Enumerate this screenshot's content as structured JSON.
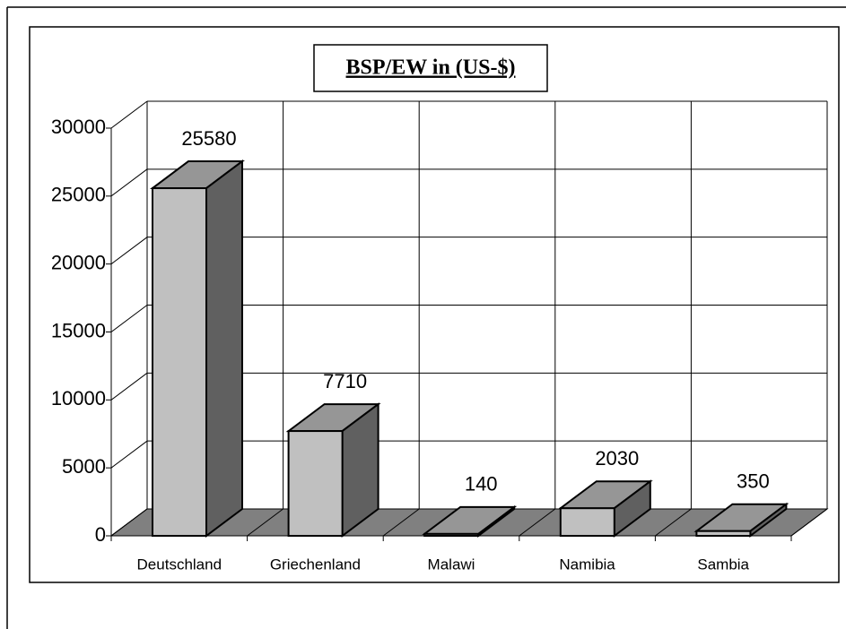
{
  "chart_data": {
    "type": "bar3d",
    "title": "BSP/EW in (US-$)",
    "categories": [
      "Deutschland",
      "Griechenland",
      "Malawi",
      "Namibia",
      "Sambia"
    ],
    "values": [
      25580,
      7710,
      140,
      2030,
      350
    ],
    "ylim": [
      0,
      30000
    ],
    "yticks": [
      0,
      5000,
      10000,
      15000,
      20000,
      25000,
      30000
    ],
    "grid": true,
    "colors": {
      "front": "#c0c0c0",
      "top": "#969696",
      "side": "#606060",
      "floor": "#808080"
    }
  }
}
